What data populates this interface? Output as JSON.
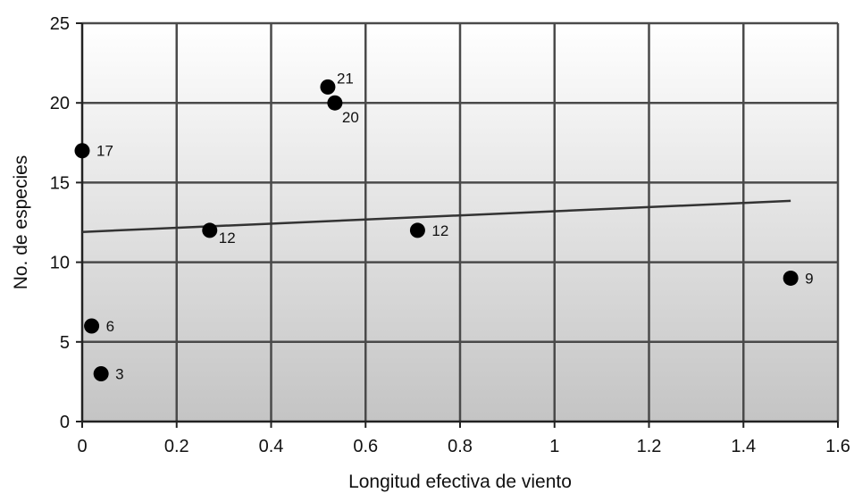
{
  "chart_data": {
    "type": "scatter",
    "title": "",
    "xlabel": "Longitud efectiva de viento",
    "ylabel": "No. de especies",
    "xlim": [
      0,
      1.6
    ],
    "ylim": [
      0,
      25
    ],
    "x_ticks": [
      "0",
      "0.2",
      "0.4",
      "0.6",
      "0.8",
      "1",
      "1.2",
      "1.4",
      "1.6"
    ],
    "y_ticks": [
      "0",
      "5",
      "10",
      "15",
      "20",
      "25"
    ],
    "grid": true,
    "legend": "none",
    "points": [
      {
        "x": 0.0,
        "y": 17,
        "label": "17"
      },
      {
        "x": 0.02,
        "y": 6,
        "label": "6"
      },
      {
        "x": 0.04,
        "y": 3,
        "label": "3"
      },
      {
        "x": 0.27,
        "y": 12,
        "label": "12"
      },
      {
        "x": 0.52,
        "y": 21,
        "label": "21"
      },
      {
        "x": 0.535,
        "y": 20,
        "label": "20"
      },
      {
        "x": 0.71,
        "y": 12,
        "label": "12"
      },
      {
        "x": 1.5,
        "y": 9,
        "label": "9"
      }
    ],
    "trendline": {
      "x": [
        0,
        1.5
      ],
      "y": [
        11.9,
        13.85
      ]
    },
    "colors": {
      "marker": "#000000",
      "grid": "#4a4a4a",
      "trendline": "#333333"
    }
  }
}
